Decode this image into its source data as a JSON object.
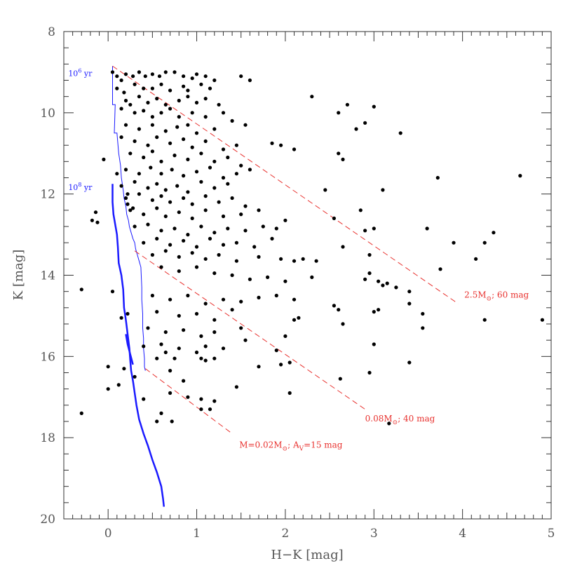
{
  "chart_data": {
    "type": "scatter",
    "title": "",
    "xlabel": "H−K [mag]",
    "ylabel": "K [mag]",
    "xlim": [
      -0.5,
      5.0
    ],
    "ylim": [
      20,
      8
    ],
    "y_inverted": true,
    "grid": false,
    "x_ticks": [
      "0",
      "1",
      "2",
      "3",
      "4",
      "5"
    ],
    "y_ticks": [
      "8",
      "10",
      "12",
      "14",
      "16",
      "18",
      "20"
    ],
    "point_color": "#000000",
    "line_color_red": "#e8322f",
    "line_color_blue": "#1a1aff",
    "annotations": [
      {
        "id": "iso6",
        "base": "10",
        "sup": "6",
        "rest": " yr",
        "x": -0.45,
        "y": 9.1,
        "color": "blue"
      },
      {
        "id": "iso8",
        "base": "10",
        "sup": "8",
        "rest": " yr",
        "x": -0.45,
        "y": 11.9,
        "color": "blue"
      },
      {
        "id": "mass25",
        "main": "2.5M",
        "sub": "⊙",
        "rest": "; 60 mag",
        "x": 4.02,
        "y": 14.55,
        "color": "red"
      },
      {
        "id": "mass008",
        "main": "0.08M",
        "sub": "⊙",
        "rest": "; 40 mag",
        "x": 2.9,
        "y": 17.6,
        "color": "red"
      },
      {
        "id": "mass002",
        "main": "M=0.02M",
        "sub": "⊙",
        "rest": "; A",
        "sub2": "V",
        "rest2": "=15 mag",
        "x": 1.48,
        "y": 18.25,
        "color": "red"
      }
    ],
    "reddening_vectors": [
      {
        "name": "2.5M⊙; 60 mag",
        "x": [
          0.05,
          3.95
        ],
        "y": [
          8.85,
          14.7
        ]
      },
      {
        "name": "0.08M⊙; 40 mag",
        "x": [
          0.3,
          2.9
        ],
        "y": [
          13.4,
          17.3
        ]
      },
      {
        "name": "M=0.02M⊙; AV=15 mag",
        "x": [
          0.42,
          1.4
        ],
        "y": [
          16.3,
          17.9
        ]
      }
    ],
    "isochrone_1e6": {
      "x": [
        0.05,
        0.05,
        0.08,
        0.07,
        0.1,
        0.12,
        0.14,
        0.15,
        0.17,
        0.18,
        0.2,
        0.21,
        0.23,
        0.24,
        0.26,
        0.28,
        0.3,
        0.31,
        0.33,
        0.35,
        0.37,
        0.38,
        0.38,
        0.39,
        0.39,
        0.4,
        0.4,
        0.41,
        0.41,
        0.42
      ],
      "y": [
        8.85,
        9.8,
        9.8,
        10.5,
        10.5,
        11.0,
        11.3,
        11.6,
        11.9,
        12.1,
        12.3,
        12.5,
        12.65,
        12.8,
        12.95,
        13.1,
        13.2,
        13.35,
        13.5,
        13.65,
        13.8,
        14.3,
        14.6,
        14.95,
        15.3,
        15.55,
        15.8,
        16.05,
        16.25,
        16.35
      ]
    },
    "isochrone_1e8": {
      "x": [
        0.05,
        0.05,
        0.06,
        0.08,
        0.1,
        0.11,
        0.12,
        0.15,
        0.17,
        0.18,
        0.2,
        0.22,
        0.24,
        0.25,
        0.26,
        0.28,
        0.3,
        0.32,
        0.35,
        0.4,
        0.45,
        0.5,
        0.55,
        0.6,
        0.62,
        0.63
      ],
      "y": [
        11.75,
        12.2,
        12.5,
        12.75,
        13.0,
        13.3,
        13.7,
        14.0,
        14.35,
        14.8,
        15.1,
        15.45,
        15.8,
        16.1,
        16.35,
        16.6,
        16.9,
        17.2,
        17.55,
        17.9,
        18.2,
        18.55,
        18.85,
        19.2,
        19.5,
        19.7
      ]
    },
    "isochrone_1e8_upper": {
      "x": [
        0.2,
        0.22,
        0.25,
        0.28
      ],
      "y": [
        15.45,
        15.7,
        15.95,
        16.2
      ]
    },
    "points": [
      [
        0.05,
        9.0
      ],
      [
        0.1,
        9.1
      ],
      [
        0.15,
        9.2
      ],
      [
        0.2,
        9.05
      ],
      [
        0.28,
        9.1
      ],
      [
        0.35,
        9.0
      ],
      [
        0.42,
        9.1
      ],
      [
        0.5,
        9.05
      ],
      [
        0.58,
        9.1
      ],
      [
        0.65,
        9.0
      ],
      [
        0.75,
        9.0
      ],
      [
        0.85,
        9.1
      ],
      [
        0.95,
        9.15
      ],
      [
        1.0,
        9.05
      ],
      [
        1.1,
        9.1
      ],
      [
        1.2,
        9.2
      ],
      [
        1.5,
        9.1
      ],
      [
        1.6,
        9.2
      ],
      [
        0.1,
        9.4
      ],
      [
        0.18,
        9.5
      ],
      [
        0.3,
        9.3
      ],
      [
        0.4,
        9.4
      ],
      [
        0.5,
        9.4
      ],
      [
        0.6,
        9.3
      ],
      [
        0.7,
        9.45
      ],
      [
        0.85,
        9.35
      ],
      [
        0.9,
        9.45
      ],
      [
        1.05,
        9.3
      ],
      [
        1.15,
        9.4
      ],
      [
        0.2,
        9.7
      ],
      [
        0.25,
        9.8
      ],
      [
        0.35,
        9.6
      ],
      [
        0.45,
        9.75
      ],
      [
        0.55,
        9.65
      ],
      [
        0.65,
        9.8
      ],
      [
        0.8,
        9.7
      ],
      [
        0.9,
        9.6
      ],
      [
        1.0,
        9.75
      ],
      [
        1.1,
        9.65
      ],
      [
        1.25,
        9.8
      ],
      [
        0.15,
        9.9
      ],
      [
        0.3,
        10.0
      ],
      [
        0.4,
        9.95
      ],
      [
        0.5,
        10.1
      ],
      [
        0.6,
        10.0
      ],
      [
        0.7,
        9.9
      ],
      [
        0.8,
        10.1
      ],
      [
        0.95,
        10.0
      ],
      [
        1.1,
        10.1
      ],
      [
        1.3,
        10.0
      ],
      [
        1.4,
        10.2
      ],
      [
        0.2,
        10.3
      ],
      [
        0.35,
        10.4
      ],
      [
        0.5,
        10.3
      ],
      [
        0.65,
        10.45
      ],
      [
        0.78,
        10.35
      ],
      [
        0.9,
        10.3
      ],
      [
        1.0,
        10.5
      ],
      [
        1.2,
        10.4
      ],
      [
        1.55,
        10.3
      ],
      [
        0.15,
        10.6
      ],
      [
        0.3,
        10.7
      ],
      [
        0.45,
        10.8
      ],
      [
        0.55,
        10.6
      ],
      [
        0.7,
        10.75
      ],
      [
        0.85,
        10.65
      ],
      [
        0.95,
        10.85
      ],
      [
        1.1,
        10.7
      ],
      [
        1.3,
        10.9
      ],
      [
        1.45,
        10.8
      ],
      [
        0.25,
        11.0
      ],
      [
        0.4,
        11.1
      ],
      [
        0.5,
        10.95
      ],
      [
        0.6,
        11.2
      ],
      [
        0.75,
        11.05
      ],
      [
        0.9,
        11.15
      ],
      [
        1.05,
        11.0
      ],
      [
        1.2,
        11.2
      ],
      [
        1.35,
        11.1
      ],
      [
        1.5,
        11.3
      ],
      [
        0.2,
        11.4
      ],
      [
        0.35,
        11.5
      ],
      [
        0.48,
        11.35
      ],
      [
        0.6,
        11.5
      ],
      [
        0.72,
        11.4
      ],
      [
        0.85,
        11.55
      ],
      [
        1.0,
        11.45
      ],
      [
        1.15,
        11.35
      ],
      [
        1.3,
        11.6
      ],
      [
        1.45,
        11.5
      ],
      [
        1.6,
        11.4
      ],
      [
        0.15,
        11.8
      ],
      [
        0.3,
        11.7
      ],
      [
        0.45,
        11.85
      ],
      [
        0.55,
        11.75
      ],
      [
        0.65,
        11.9
      ],
      [
        0.78,
        11.8
      ],
      [
        0.9,
        11.95
      ],
      [
        1.05,
        11.7
      ],
      [
        1.2,
        11.85
      ],
      [
        1.35,
        11.75
      ],
      [
        0.2,
        12.1
      ],
      [
        0.35,
        12.0
      ],
      [
        0.5,
        12.15
      ],
      [
        0.6,
        12.05
      ],
      [
        0.7,
        12.2
      ],
      [
        0.85,
        12.1
      ],
      [
        0.95,
        12.25
      ],
      [
        1.1,
        12.05
      ],
      [
        1.25,
        12.2
      ],
      [
        1.4,
        12.1
      ],
      [
        1.55,
        12.3
      ],
      [
        0.25,
        12.4
      ],
      [
        0.4,
        12.5
      ],
      [
        0.55,
        12.35
      ],
      [
        0.65,
        12.55
      ],
      [
        0.8,
        12.45
      ],
      [
        0.95,
        12.6
      ],
      [
        1.1,
        12.4
      ],
      [
        1.3,
        12.55
      ],
      [
        1.5,
        12.5
      ],
      [
        1.7,
        12.4
      ],
      [
        0.3,
        12.8
      ],
      [
        0.45,
        12.75
      ],
      [
        0.6,
        12.9
      ],
      [
        0.75,
        12.85
      ],
      [
        0.9,
        13.0
      ],
      [
        1.05,
        12.8
      ],
      [
        1.2,
        12.95
      ],
      [
        1.35,
        12.85
      ],
      [
        1.55,
        12.9
      ],
      [
        1.75,
        12.8
      ],
      [
        1.9,
        12.85
      ],
      [
        0.4,
        13.2
      ],
      [
        0.55,
        13.1
      ],
      [
        0.7,
        13.25
      ],
      [
        0.85,
        13.15
      ],
      [
        1.0,
        13.3
      ],
      [
        1.15,
        13.1
      ],
      [
        1.3,
        13.25
      ],
      [
        1.45,
        13.2
      ],
      [
        1.65,
        13.3
      ],
      [
        1.85,
        13.1
      ],
      [
        0.5,
        13.5
      ],
      [
        0.65,
        13.4
      ],
      [
        0.8,
        13.55
      ],
      [
        0.95,
        13.45
      ],
      [
        1.1,
        13.6
      ],
      [
        1.25,
        13.5
      ],
      [
        1.45,
        13.65
      ],
      [
        1.7,
        13.55
      ],
      [
        1.95,
        13.6
      ],
      [
        2.1,
        13.65
      ],
      [
        2.2,
        13.6
      ],
      [
        2.35,
        13.65
      ],
      [
        0.6,
        13.8
      ],
      [
        0.8,
        13.9
      ],
      [
        1.0,
        13.8
      ],
      [
        1.2,
        13.95
      ],
      [
        1.4,
        14.0
      ],
      [
        1.6,
        14.1
      ],
      [
        1.8,
        14.05
      ],
      [
        2.0,
        14.15
      ],
      [
        2.3,
        14.05
      ],
      [
        1.95,
        10.8
      ],
      [
        1.85,
        10.75
      ],
      [
        2.1,
        10.9
      ],
      [
        2.3,
        9.6
      ],
      [
        2.6,
        10.0
      ],
      [
        2.7,
        9.8
      ],
      [
        2.8,
        10.4
      ],
      [
        2.9,
        10.25
      ],
      [
        3.0,
        9.85
      ],
      [
        3.3,
        10.5
      ],
      [
        2.6,
        11.0
      ],
      [
        2.65,
        11.15
      ],
      [
        3.1,
        11.9
      ],
      [
        3.72,
        11.6
      ],
      [
        4.65,
        11.55
      ],
      [
        2.45,
        11.9
      ],
      [
        2.85,
        12.4
      ],
      [
        2.55,
        12.6
      ],
      [
        2.0,
        12.65
      ],
      [
        2.9,
        12.9
      ],
      [
        3.0,
        12.85
      ],
      [
        3.6,
        12.85
      ],
      [
        3.9,
        13.2
      ],
      [
        4.35,
        12.95
      ],
      [
        4.25,
        13.2
      ],
      [
        2.65,
        13.3
      ],
      [
        2.95,
        13.5
      ],
      [
        4.15,
        13.6
      ],
      [
        3.75,
        13.85
      ],
      [
        2.95,
        13.95
      ],
      [
        3.05,
        14.15
      ],
      [
        2.9,
        14.1
      ],
      [
        3.1,
        14.25
      ],
      [
        3.25,
        14.3
      ],
      [
        3.4,
        14.4
      ],
      [
        3.15,
        14.2
      ],
      [
        0.5,
        14.5
      ],
      [
        0.7,
        14.6
      ],
      [
        0.9,
        14.5
      ],
      [
        1.1,
        14.7
      ],
      [
        1.3,
        14.6
      ],
      [
        1.5,
        14.65
      ],
      [
        1.7,
        14.55
      ],
      [
        1.9,
        14.5
      ],
      [
        2.1,
        14.6
      ],
      [
        0.55,
        14.9
      ],
      [
        0.8,
        15.0
      ],
      [
        1.0,
        14.95
      ],
      [
        1.2,
        15.1
      ],
      [
        1.4,
        14.85
      ],
      [
        2.1,
        15.1
      ],
      [
        2.15,
        15.05
      ],
      [
        2.55,
        14.75
      ],
      [
        2.6,
        14.85
      ],
      [
        2.65,
        15.2
      ],
      [
        3.0,
        14.9
      ],
      [
        3.05,
        14.85
      ],
      [
        3.4,
        14.7
      ],
      [
        3.55,
        14.95
      ],
      [
        3.55,
        15.3
      ],
      [
        4.25,
        15.1
      ],
      [
        4.9,
        15.1
      ],
      [
        0.45,
        15.3
      ],
      [
        0.65,
        15.4
      ],
      [
        0.85,
        15.35
      ],
      [
        1.05,
        15.5
      ],
      [
        1.2,
        15.4
      ],
      [
        0.6,
        15.7
      ],
      [
        0.8,
        15.8
      ],
      [
        1.0,
        15.9
      ],
      [
        1.1,
        15.75
      ],
      [
        1.3,
        15.8
      ],
      [
        1.55,
        15.6
      ],
      [
        1.9,
        15.85
      ],
      [
        1.95,
        16.2
      ],
      [
        2.05,
        16.15
      ],
      [
        1.7,
        16.25
      ],
      [
        1.5,
        15.3
      ],
      [
        2.0,
        15.5
      ],
      [
        0.55,
        16.05
      ],
      [
        0.65,
        15.9
      ],
      [
        0.75,
        16.05
      ],
      [
        0.7,
        16.35
      ],
      [
        0.85,
        16.6
      ],
      [
        1.05,
        16.05
      ],
      [
        1.1,
        16.1
      ],
      [
        1.2,
        16.05
      ],
      [
        3.0,
        15.7
      ],
      [
        3.4,
        16.15
      ],
      [
        2.95,
        16.4
      ],
      [
        2.62,
        16.55
      ],
      [
        2.05,
        16.9
      ],
      [
        1.45,
        16.75
      ],
      [
        0.9,
        17.0
      ],
      [
        1.05,
        17.05
      ],
      [
        1.2,
        17.1
      ],
      [
        1.05,
        17.3
      ],
      [
        1.15,
        17.3
      ],
      [
        0.7,
        16.9
      ],
      [
        0.72,
        17.6
      ],
      [
        0.6,
        17.4
      ],
      [
        0.55,
        17.6
      ],
      [
        0.4,
        17.05
      ],
      [
        0.4,
        15.75
      ],
      [
        0.3,
        16.5
      ],
      [
        0.18,
        16.3
      ],
      [
        0.12,
        16.7
      ],
      [
        0.0,
        16.25
      ],
      [
        0.0,
        16.8
      ],
      [
        -0.3,
        17.4
      ],
      [
        3.17,
        17.65
      ],
      [
        0.15,
        15.05
      ],
      [
        0.22,
        14.95
      ],
      [
        -0.18,
        12.65
      ],
      [
        -0.12,
        12.7
      ],
      [
        -0.14,
        12.45
      ],
      [
        -0.05,
        11.15
      ],
      [
        0.05,
        14.4
      ],
      [
        -0.3,
        14.35
      ],
      [
        0.22,
        12.0
      ],
      [
        0.22,
        12.25
      ],
      [
        0.28,
        12.35
      ],
      [
        0.1,
        11.5
      ]
    ]
  }
}
